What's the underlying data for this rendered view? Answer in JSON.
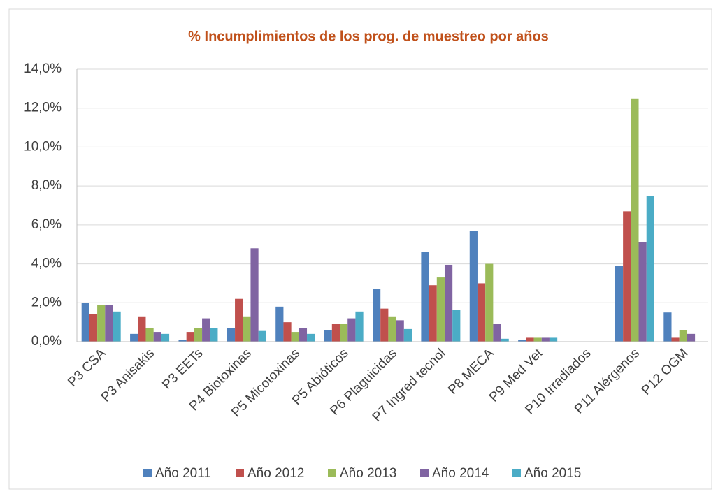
{
  "chart_data": {
    "type": "bar",
    "title": "% Incumplimientos de los prog. de muestreo por años",
    "categories": [
      "P3 CSA",
      "P3 Anisakis",
      "P3 EETs",
      "P4 Biotoxinas",
      "P5 Micotoxinas",
      "P5 Abióticos",
      "P6 Plaguicidas",
      "P7 Ingred tecnol",
      "P8 MECA",
      "P9 Med Vet",
      "P10 Irradiados",
      "P11 Alérgenos",
      "P12 OGM"
    ],
    "series": [
      {
        "name": "Año 2011",
        "color": "#4f81bd",
        "values": [
          2.0,
          0.4,
          0.1,
          0.7,
          1.8,
          0.6,
          2.7,
          4.6,
          5.7,
          0.1,
          0,
          3.9,
          1.5
        ]
      },
      {
        "name": "Año 2012",
        "color": "#c0504d",
        "values": [
          1.4,
          1.3,
          0.5,
          2.2,
          1.0,
          0.9,
          1.7,
          2.9,
          3.0,
          0.2,
          0,
          6.7,
          0.2
        ]
      },
      {
        "name": "Año 2013",
        "color": "#9bbb59",
        "values": [
          1.9,
          0.7,
          0.7,
          1.3,
          0.5,
          0.9,
          1.3,
          3.3,
          4.0,
          0.2,
          0,
          12.5,
          0.6
        ]
      },
      {
        "name": "Año 2014",
        "color": "#8064a2",
        "values": [
          1.9,
          0.5,
          1.2,
          4.8,
          0.7,
          1.2,
          1.1,
          3.95,
          0.9,
          0.2,
          0,
          5.1,
          0.4
        ]
      },
      {
        "name": "Año 2015",
        "color": "#4bacc6",
        "values": [
          1.55,
          0.4,
          0.7,
          0.55,
          0.4,
          1.55,
          0.65,
          1.65,
          0.15,
          0.2,
          0,
          7.5,
          0
        ]
      }
    ],
    "ylim": [
      0,
      14
    ],
    "yticks": [
      {
        "value": 0,
        "label": "0,0%"
      },
      {
        "value": 2,
        "label": "2,0%"
      },
      {
        "value": 4,
        "label": "4,0%"
      },
      {
        "value": 6,
        "label": "6,0%"
      },
      {
        "value": 8,
        "label": "8,0%"
      },
      {
        "value": 10,
        "label": "10,0%"
      },
      {
        "value": 12,
        "label": "12,0%"
      },
      {
        "value": 14,
        "label": "14,0%"
      }
    ],
    "grid": true,
    "legend": "bottom"
  }
}
